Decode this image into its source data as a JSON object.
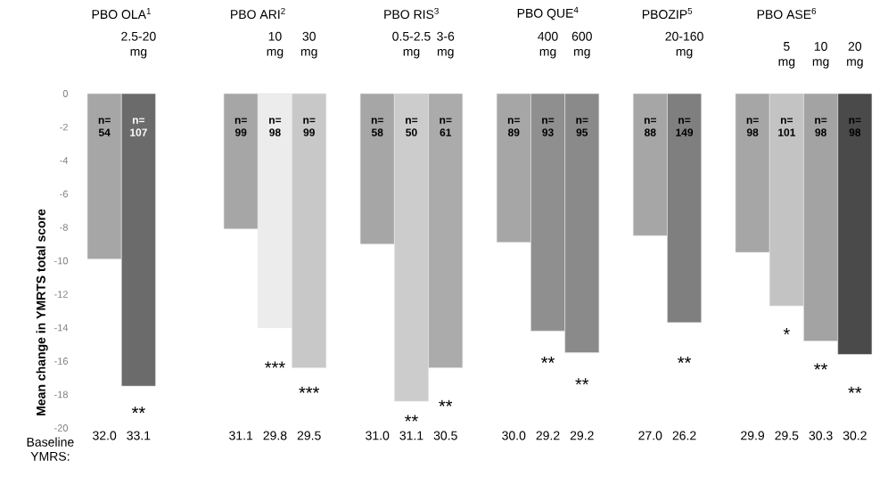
{
  "chart_data": {
    "type": "bar",
    "ylabel": "Mean change in YMRTS total score",
    "xlabel": "Baseline YMRS:",
    "categories": [
      "32.0",
      "33.1",
      null,
      null,
      "31.1",
      "29.8",
      "29.5",
      null,
      "31.0",
      "31.1",
      "30.5",
      null,
      "30.0",
      "29.2",
      "29.2",
      null,
      "27.0",
      "26.2",
      null,
      "29.9",
      "29.5",
      "30.3",
      "30.2"
    ],
    "values": [
      -9.9,
      -17.5,
      null,
      null,
      -8.1,
      -14.0,
      -16.4,
      null,
      -9.0,
      -18.4,
      -16.4,
      null,
      -8.9,
      -14.2,
      -15.5,
      null,
      -8.5,
      -13.7,
      null,
      -9.5,
      -12.7,
      -14.8,
      -15.6
    ],
    "colors": [
      "#a6a6a6",
      "#6b6b6b",
      null,
      null,
      "#a6a6a6",
      "#ececec",
      "#c8c8c8",
      null,
      "#a6a6a6",
      "#cccccc",
      "#ababab",
      null,
      "#a6a6a6",
      "#8f8f8f",
      "#8a8a8a",
      null,
      "#a6a6a6",
      "#7f7f7f",
      null,
      "#a6a6a6",
      "#c3c3c3",
      "#a3a3a3",
      "#4a4a4a"
    ],
    "ylim": [
      -20,
      0
    ],
    "yticks": [
      0,
      -2,
      -4,
      -6,
      -8,
      -10,
      -12,
      -14,
      -16,
      -18,
      -20
    ],
    "annotations": [
      "PBO OLA$^{1}$",
      "2.5-20 mg",
      "n= 54",
      "n= 107",
      "**",
      "PBO ARI$^{2}$",
      "10 mg",
      "30 mg",
      "n= 99",
      "n= 98",
      "n= 99",
      "***",
      "***",
      "PBO RIS$^{3}$",
      "0.5-2.5 mg",
      "3-6 mg",
      "n= 58",
      "n= 50",
      "n= 61",
      "**",
      "**",
      "PBO QUE$^{4}$",
      "400 mg",
      "600 mg",
      "n= 89",
      "n= 93",
      "n= 95",
      "**",
      "**",
      "PBOZIP$^{5}$",
      "20-160 mg",
      "n= 88",
      "n= 149",
      "**",
      "PBO ASE$^{6}$",
      "5 mg",
      "10 mg",
      "20 mg",
      "n= 98",
      "n= 101",
      "n= 98",
      "n= 98",
      "*",
      "**",
      "**"
    ]
  }
}
